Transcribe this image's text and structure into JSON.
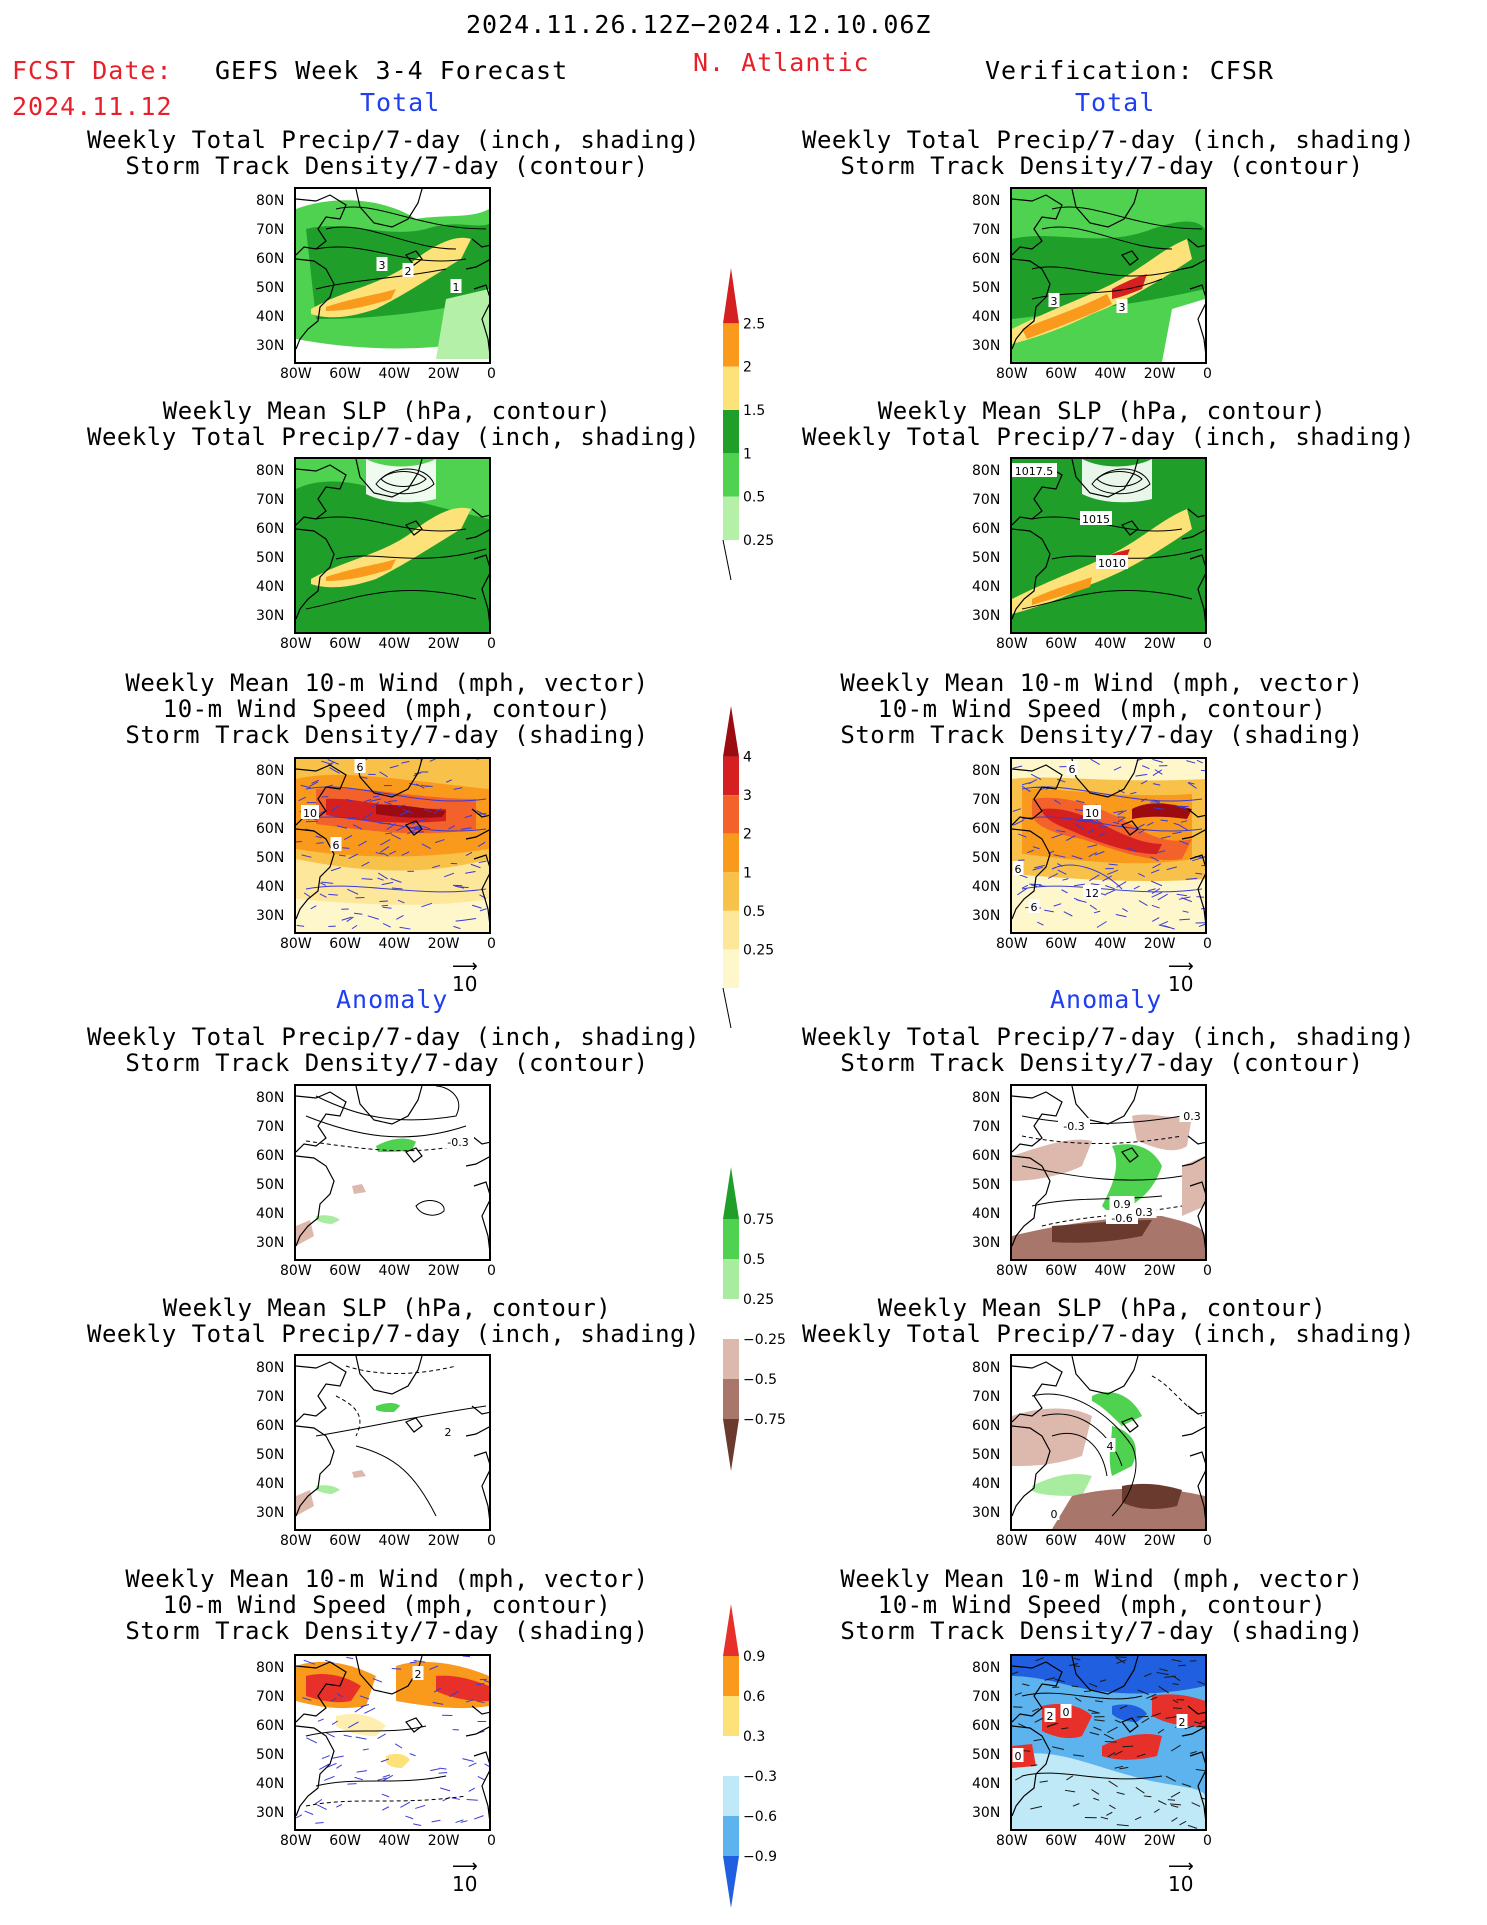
{
  "header": {
    "period": "2024.11.26.12Z−2024.12.10.06Z",
    "region": "N. Atlantic",
    "fcst_label": "FCST Date:",
    "fcst_date": "2024.11.12",
    "model": "GEFS Week 3-4 Forecast",
    "verification": "Verification: CFSR"
  },
  "section_labels": {
    "total": "Total",
    "anomaly": "Anomaly"
  },
  "titles": {
    "precip_storm": [
      "Weekly Total Precip/7-day (inch, shading)",
      "Storm Track Density/7-day (contour)"
    ],
    "slp_precip": [
      "Weekly Mean SLP (hPa, contour)",
      "Weekly Total Precip/7-day (inch, shading)"
    ],
    "wind_storm": [
      "Weekly Mean 10-m Wind (mph, vector)",
      "10-m Wind Speed (mph, contour)",
      "Storm Track Density/7-day (shading)"
    ]
  },
  "axes": {
    "lat_ticks": [
      "80N",
      "70N",
      "60N",
      "50N",
      "40N",
      "30N"
    ],
    "lon_ticks": [
      "80W",
      "60W",
      "40W",
      "20W",
      "0"
    ]
  },
  "vector_ref": "10",
  "colorbars": {
    "total_precip": {
      "levels": [
        "2.5",
        "2",
        "1.5",
        "1",
        "0.5",
        "0.25"
      ],
      "colors": [
        "#d42020",
        "#f99a1c",
        "#fde27a",
        "#1f9f2a",
        "#4fd24f",
        "#b5f0a8"
      ]
    },
    "total_storm": {
      "levels": [
        "4",
        "3",
        "2",
        "1",
        "0.5",
        "0.25"
      ],
      "colors": [
        "#9b0b10",
        "#d42020",
        "#f2622a",
        "#f99a1c",
        "#f8c24a",
        "#fde79a",
        "#fff7cc"
      ]
    },
    "anom_precip": {
      "levels": [
        "0.75",
        "0.5",
        "0.25",
        "−0.25",
        "−0.5",
        "−0.75"
      ],
      "colors": [
        "#1f9f2a",
        "#4fd24f",
        "#a8eca0",
        "#ffffff",
        "#dcb8ad",
        "#a9766b",
        "#6b3a2e"
      ]
    },
    "anom_storm": {
      "levels": [
        "0.9",
        "0.6",
        "0.3",
        "−0.3",
        "−0.6",
        "−0.9"
      ],
      "colors": [
        "#e8302a",
        "#f99a1c",
        "#fde27a",
        "#ffffff",
        "#bfe9f6",
        "#5cb3ee",
        "#1f5fe0"
      ]
    }
  },
  "panels": {
    "L1": {
      "labels": [
        "3",
        "2",
        "1"
      ]
    },
    "R1": {
      "labels": [
        "3",
        "3"
      ]
    },
    "L2": {
      "labels": []
    },
    "R2": {
      "labels": [
        "1017.5",
        "1015",
        "1010"
      ]
    },
    "L3": {
      "labels": [
        "6",
        "10",
        "6"
      ]
    },
    "R3": {
      "labels": [
        "6",
        "10",
        "6",
        "12",
        "6"
      ]
    },
    "L4": {
      "labels": [
        "-0.3"
      ]
    },
    "R4": {
      "labels": [
        "-0.3",
        "0.3",
        "0.9",
        "-0.6",
        "0.3"
      ]
    },
    "L5": {
      "labels": [
        "2"
      ]
    },
    "R5": {
      "labels": [
        "4",
        "0"
      ]
    },
    "L6": {
      "labels": [
        "2"
      ]
    },
    "R6": {
      "labels": [
        "2",
        "0",
        "0",
        "2"
      ]
    }
  },
  "chart_data": [
    {
      "type": "heatmap",
      "title": "Weekly Total Precip/7-day (inch, shading) / Storm Track Density/7-day (contour)",
      "column": "GEFS Week 3-4 Forecast",
      "section": "Total",
      "xlim": [
        -80,
        0
      ],
      "ylim": [
        25,
        85
      ],
      "legend_levels": [
        0.25,
        0.5,
        1,
        1.5,
        2,
        2.5
      ],
      "contour_labels": [
        3,
        2,
        1
      ]
    },
    {
      "type": "heatmap",
      "title": "Weekly Total Precip/7-day (inch, shading) / Storm Track Density/7-day (contour)",
      "column": "Verification: CFSR",
      "section": "Total",
      "xlim": [
        -80,
        0
      ],
      "ylim": [
        25,
        85
      ],
      "legend_levels": [
        0.25,
        0.5,
        1,
        1.5,
        2,
        2.5
      ],
      "contour_labels": [
        3,
        3
      ]
    },
    {
      "type": "heatmap",
      "title": "Weekly Mean SLP (hPa, contour) / Weekly Total Precip/7-day (inch, shading)",
      "column": "Verification: CFSR",
      "section": "Total",
      "xlim": [
        -80,
        0
      ],
      "ylim": [
        25,
        85
      ],
      "contour_labels": [
        1017.5,
        1015,
        1010
      ]
    },
    {
      "type": "heatmap",
      "title": "Weekly Mean 10-m Wind (mph, vector) / 10-m Wind Speed (mph, contour) / Storm Track Density/7-day (shading)",
      "column": "GEFS Week 3-4 Forecast",
      "section": "Total",
      "xlim": [
        -80,
        0
      ],
      "ylim": [
        25,
        85
      ],
      "legend_levels": [
        0.25,
        0.5,
        1,
        2,
        3,
        4
      ],
      "contour_labels": [
        6,
        10,
        6
      ]
    },
    {
      "type": "heatmap",
      "title": "Weekly Mean 10-m Wind (mph, vector) / 10-m Wind Speed (mph, contour) / Storm Track Density/7-day (shading)",
      "column": "Verification: CFSR",
      "section": "Total",
      "xlim": [
        -80,
        0
      ],
      "ylim": [
        25,
        85
      ],
      "legend_levels": [
        0.25,
        0.5,
        1,
        2,
        3,
        4
      ],
      "contour_labels": [
        6,
        10,
        6,
        12,
        6
      ]
    },
    {
      "type": "heatmap",
      "title": "Weekly Total Precip/7-day (inch, shading) / Storm Track Density/7-day (contour)",
      "column": "both",
      "section": "Anomaly",
      "xlim": [
        -80,
        0
      ],
      "ylim": [
        25,
        85
      ],
      "legend_levels": [
        -0.75,
        -0.5,
        -0.25,
        0.25,
        0.5,
        0.75
      ]
    },
    {
      "type": "heatmap",
      "title": "Weekly Mean 10-m Wind (mph, vector) / 10-m Wind Speed (mph, contour) / Storm Track Density/7-day (shading)",
      "column": "both",
      "section": "Anomaly",
      "xlim": [
        -80,
        0
      ],
      "ylim": [
        25,
        85
      ],
      "legend_levels": [
        -0.9,
        -0.6,
        -0.3,
        0.3,
        0.6,
        0.9
      ]
    }
  ]
}
